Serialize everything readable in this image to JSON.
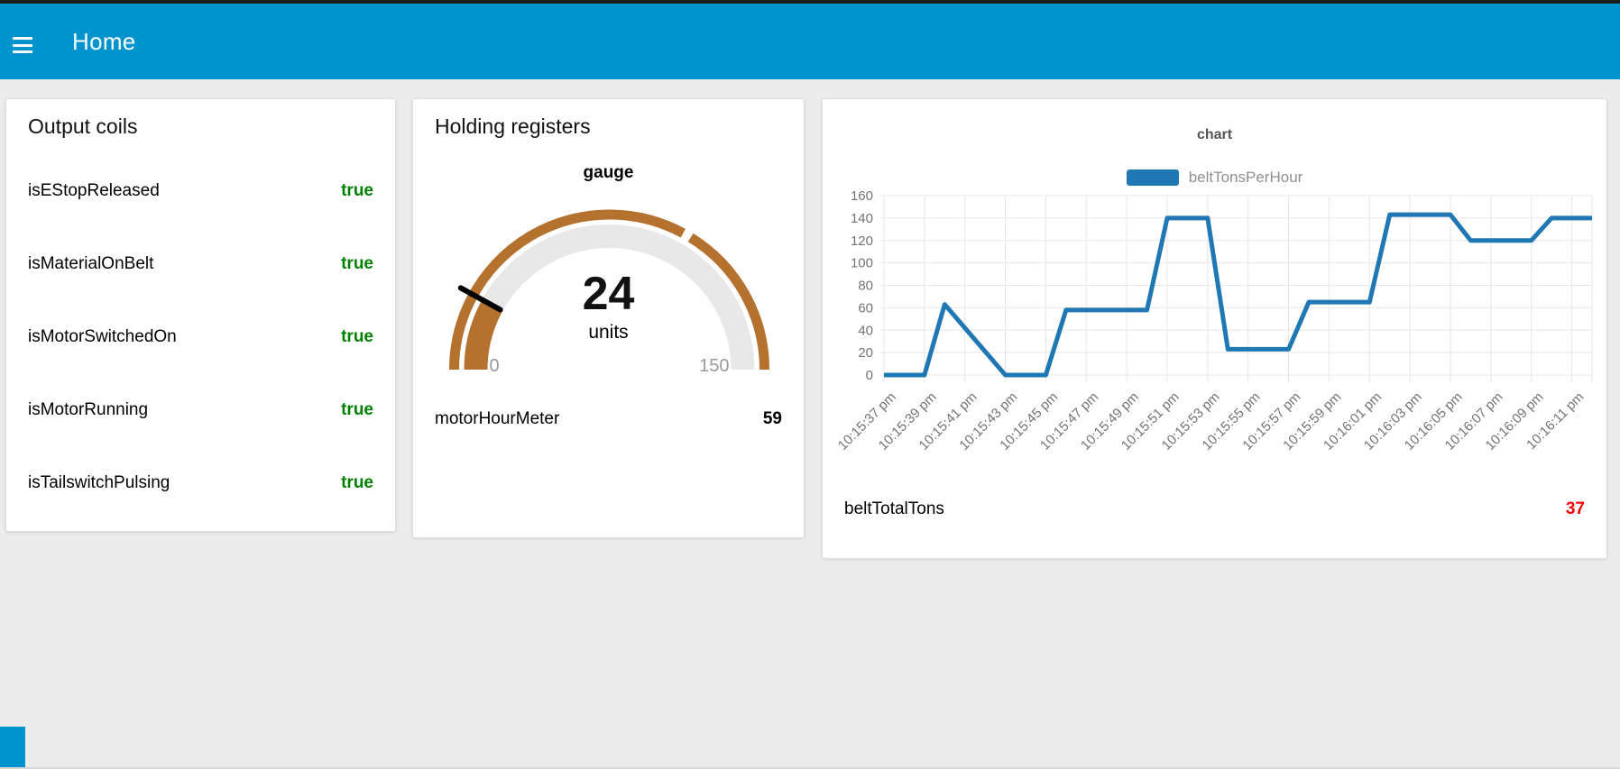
{
  "header": {
    "title": "Home"
  },
  "cards": {
    "coils": {
      "title": "Output coils",
      "value_color": "#008000",
      "items": [
        {
          "label": "isEStopReleased",
          "value": "true"
        },
        {
          "label": "isMaterialOnBelt",
          "value": "true"
        },
        {
          "label": "isMotorSwitchedOn",
          "value": "true"
        },
        {
          "label": "isMotorRunning",
          "value": "true"
        },
        {
          "label": "isTailswitchPulsing",
          "value": "true"
        }
      ]
    },
    "registers": {
      "title": "Holding registers",
      "gauge": {
        "title": "gauge",
        "value": 24,
        "units": "units",
        "min": 0,
        "max": 150,
        "marker_value": 100,
        "arc_color": "#b5712e",
        "track_color": "#e8e8e8",
        "needle_color": "#000000",
        "minmax_color": "#999999"
      },
      "meter": {
        "label": "motorHourMeter",
        "value": "59"
      }
    },
    "chart": {
      "title": "chart",
      "legend": {
        "label": "beltTonsPerHour",
        "color": "#1f77b4"
      },
      "total": {
        "label": "beltTotalTons",
        "value": "37",
        "color": "#ff0000"
      }
    }
  },
  "chart_data": {
    "type": "line",
    "title": "chart",
    "series": [
      {
        "name": "beltTonsPerHour",
        "color": "#1f77b4",
        "values": [
          0,
          0,
          0,
          63,
          42,
          21,
          0,
          0,
          0,
          58,
          58,
          58,
          58,
          58,
          140,
          140,
          140,
          23,
          23,
          23,
          23,
          65,
          65,
          65,
          65,
          143,
          143,
          143,
          143,
          120,
          120,
          120,
          120,
          140,
          140,
          140
        ]
      }
    ],
    "x_tick_labels": [
      "10:15:37 pm",
      "10:15:39 pm",
      "10:15:41 pm",
      "10:15:43 pm",
      "10:15:45 pm",
      "10:15:47 pm",
      "10:15:49 pm",
      "10:15:51 pm",
      "10:15:53 pm",
      "10:15:55 pm",
      "10:15:57 pm",
      "10:15:59 pm",
      "10:16:01 pm",
      "10:16:03 pm",
      "10:16:05 pm",
      "10:16:07 pm",
      "10:16:09 pm",
      "10:16:11 pm"
    ],
    "points_per_tick": 2,
    "xlabel": "",
    "ylabel": "",
    "ylim": [
      0,
      160
    ],
    "ytick_step": 20,
    "grid": true,
    "grid_color": "#e7e7e7",
    "tick_label_color": "#737373",
    "legend_position": "top"
  }
}
